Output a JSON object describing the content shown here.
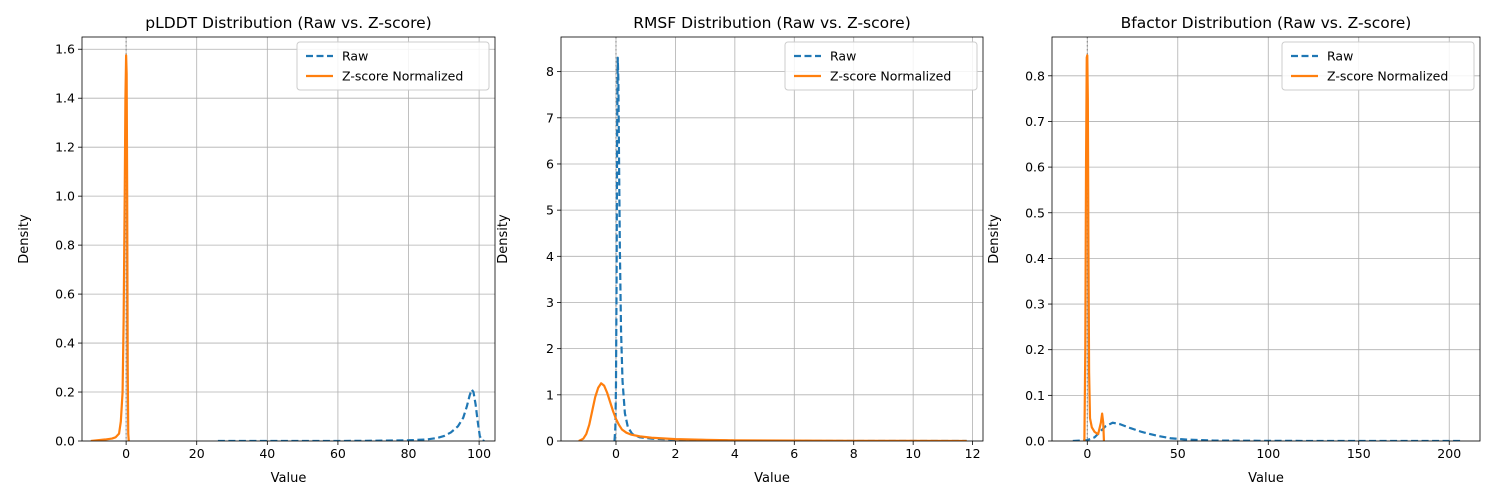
{
  "chart_data": [
    {
      "type": "line",
      "title": "pLDDT Distribution (Raw vs. Z-score)",
      "xlabel": "Value",
      "ylabel": "Density",
      "xlim": [
        -12.5,
        104.5
      ],
      "ylim": [
        0,
        1.65
      ],
      "xticks": [
        0,
        20,
        40,
        60,
        80,
        100
      ],
      "xtick_labels": [
        "0",
        "20",
        "40",
        "60",
        "80",
        "100"
      ],
      "yticks": [
        0,
        0.2,
        0.4,
        0.6,
        0.8,
        1.0,
        1.2,
        1.4,
        1.6
      ],
      "ytick_labels": [
        "0.0",
        "0.2",
        "0.4",
        "0.6",
        "0.8",
        "1.0",
        "1.2",
        "1.4",
        "1.6"
      ],
      "grid": true,
      "reference_line_x": 0,
      "legend": {
        "position": "top-right",
        "entries": [
          "Raw",
          "Z-score Normalized"
        ]
      },
      "series": [
        {
          "name": "Raw",
          "color": "#1f77b4",
          "style": "dashed",
          "points": [
            [
              26,
              0
            ],
            [
              40,
              0
            ],
            [
              60,
              0
            ],
            [
              70,
              0.001
            ],
            [
              80,
              0.003
            ],
            [
              85,
              0.006
            ],
            [
              88,
              0.012
            ],
            [
              90,
              0.02
            ],
            [
              92,
              0.035
            ],
            [
              94,
              0.06
            ],
            [
              95.5,
              0.095
            ],
            [
              96.5,
              0.14
            ],
            [
              97.3,
              0.185
            ],
            [
              97.9,
              0.21
            ],
            [
              98.4,
              0.2
            ],
            [
              99,
              0.15
            ],
            [
              99.6,
              0.08
            ],
            [
              100.2,
              0.02
            ],
            [
              100.8,
              0.003
            ],
            [
              101.5,
              0
            ]
          ]
        },
        {
          "name": "Z-score Normalized",
          "color": "#ff7f0e",
          "style": "solid",
          "points": [
            [
              -10,
              0
            ],
            [
              -8,
              0.003
            ],
            [
              -6,
              0.006
            ],
            [
              -4,
              0.01
            ],
            [
              -3,
              0.015
            ],
            [
              -2,
              0.03
            ],
            [
              -1.5,
              0.08
            ],
            [
              -1,
              0.2
            ],
            [
              -0.7,
              0.5
            ],
            [
              -0.4,
              1.0
            ],
            [
              -0.2,
              1.4
            ],
            [
              0,
              1.575
            ],
            [
              0.15,
              1.5
            ],
            [
              0.3,
              1.0
            ],
            [
              0.45,
              0.3
            ],
            [
              0.6,
              0.03
            ],
            [
              0.75,
              0
            ]
          ]
        }
      ]
    },
    {
      "type": "line",
      "title": "RMSF Distribution (Raw vs. Z-score)",
      "xlabel": "Value",
      "ylabel": "Density",
      "xlim": [
        -1.85,
        12.35
      ],
      "ylim": [
        0,
        8.75
      ],
      "xticks": [
        0,
        2,
        4,
        6,
        8,
        10,
        12
      ],
      "xtick_labels": [
        "0",
        "2",
        "4",
        "6",
        "8",
        "10",
        "12"
      ],
      "yticks": [
        0,
        1,
        2,
        3,
        4,
        5,
        6,
        7,
        8
      ],
      "ytick_labels": [
        "0",
        "1",
        "2",
        "3",
        "4",
        "5",
        "6",
        "7",
        "8"
      ],
      "grid": true,
      "reference_line_x": 0,
      "legend": {
        "position": "top-right",
        "entries": [
          "Raw",
          "Z-score Normalized"
        ]
      },
      "series": [
        {
          "name": "Raw",
          "color": "#1f77b4",
          "style": "dashed",
          "points": [
            [
              -0.05,
              0
            ],
            [
              -0.02,
              0.3
            ],
            [
              0,
              1.2
            ],
            [
              0.02,
              3.5
            ],
            [
              0.04,
              6.8
            ],
            [
              0.06,
              8.3
            ],
            [
              0.08,
              7.8
            ],
            [
              0.1,
              6.3
            ],
            [
              0.13,
              4.2
            ],
            [
              0.17,
              2.4
            ],
            [
              0.22,
              1.3
            ],
            [
              0.3,
              0.6
            ],
            [
              0.4,
              0.3
            ],
            [
              0.55,
              0.15
            ],
            [
              0.8,
              0.08
            ],
            [
              1.2,
              0.05
            ],
            [
              2,
              0.03
            ],
            [
              4,
              0.01
            ],
            [
              7,
              0
            ],
            [
              11.8,
              0
            ]
          ]
        },
        {
          "name": "Z-score Normalized",
          "color": "#ff7f0e",
          "style": "solid",
          "points": [
            [
              -1.25,
              0
            ],
            [
              -1.1,
              0.05
            ],
            [
              -1,
              0.15
            ],
            [
              -0.9,
              0.35
            ],
            [
              -0.8,
              0.65
            ],
            [
              -0.7,
              0.95
            ],
            [
              -0.6,
              1.15
            ],
            [
              -0.5,
              1.25
            ],
            [
              -0.4,
              1.2
            ],
            [
              -0.3,
              1.05
            ],
            [
              -0.2,
              0.85
            ],
            [
              -0.1,
              0.65
            ],
            [
              0,
              0.48
            ],
            [
              0.1,
              0.35
            ],
            [
              0.2,
              0.25
            ],
            [
              0.35,
              0.18
            ],
            [
              0.5,
              0.14
            ],
            [
              0.8,
              0.1
            ],
            [
              1.2,
              0.07
            ],
            [
              2,
              0.04
            ],
            [
              3,
              0.025
            ],
            [
              4,
              0.015
            ],
            [
              6,
              0.008
            ],
            [
              8,
              0.004
            ],
            [
              10,
              0.002
            ],
            [
              11.8,
              0
            ]
          ]
        }
      ]
    },
    {
      "type": "line",
      "title": "Bfactor Distribution (Raw vs. Z-score)",
      "xlabel": "Value",
      "ylabel": "Density",
      "xlim": [
        -19.5,
        217
      ],
      "ylim": [
        0,
        0.885
      ],
      "xticks": [
        0,
        50,
        100,
        150,
        200
      ],
      "xtick_labels": [
        "0",
        "50",
        "100",
        "150",
        "200"
      ],
      "yticks": [
        0,
        0.1,
        0.2,
        0.3,
        0.4,
        0.5,
        0.6,
        0.7,
        0.8
      ],
      "ytick_labels": [
        "0.0",
        "0.1",
        "0.2",
        "0.3",
        "0.4",
        "0.5",
        "0.6",
        "0.7",
        "0.8"
      ],
      "grid": true,
      "reference_line_x": 0,
      "legend": {
        "position": "top-right",
        "entries": [
          "Raw",
          "Z-score Normalized"
        ]
      },
      "series": [
        {
          "name": "Raw",
          "color": "#1f77b4",
          "style": "dashed",
          "points": [
            [
              -8,
              0
            ],
            [
              0,
              0.002
            ],
            [
              4,
              0.008
            ],
            [
              7,
              0.02
            ],
            [
              10,
              0.032
            ],
            [
              14,
              0.04
            ],
            [
              18,
              0.037
            ],
            [
              24,
              0.028
            ],
            [
              30,
              0.02
            ],
            [
              38,
              0.012
            ],
            [
              46,
              0.006
            ],
            [
              55,
              0.003
            ],
            [
              70,
              0.001
            ],
            [
              100,
              0.0003
            ],
            [
              150,
              0
            ],
            [
              207,
              0
            ]
          ]
        },
        {
          "name": "Z-score Normalized",
          "color": "#ff7f0e",
          "style": "solid",
          "points": [
            [
              -1.6,
              0
            ],
            [
              -1.1,
              0.2
            ],
            [
              -0.7,
              0.6
            ],
            [
              -0.3,
              0.84
            ],
            [
              0,
              0.845
            ],
            [
              0.3,
              0.75
            ],
            [
              0.6,
              0.45
            ],
            [
              1,
              0.15
            ],
            [
              1.5,
              0.05
            ],
            [
              2.5,
              0.03
            ],
            [
              4,
              0.02
            ],
            [
              6,
              0.015
            ],
            [
              7.5,
              0.04
            ],
            [
              8.2,
              0.06
            ],
            [
              8.8,
              0.04
            ],
            [
              9.2,
              0
            ]
          ]
        }
      ]
    }
  ]
}
